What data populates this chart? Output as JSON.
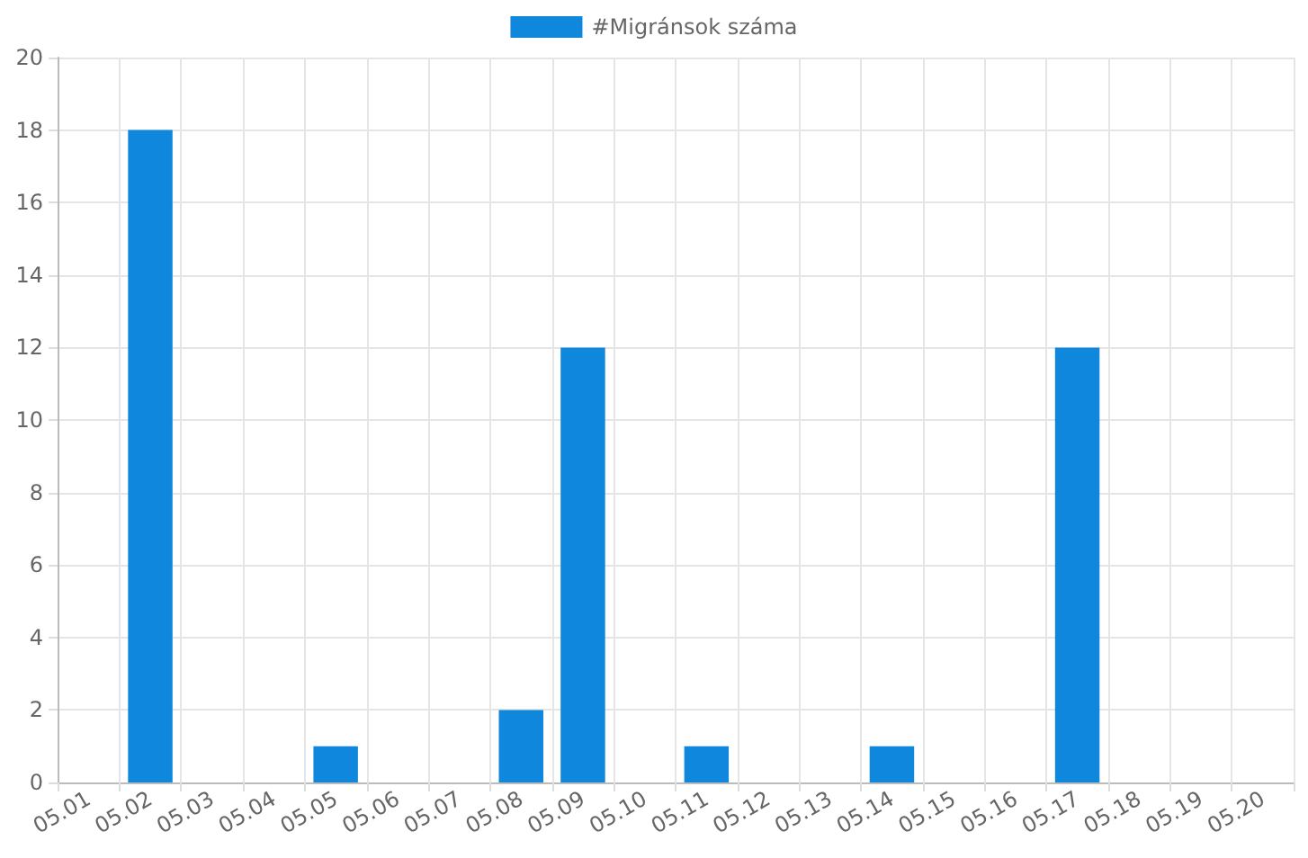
{
  "chart_data": {
    "type": "bar",
    "categories": [
      "05.01",
      "05.02",
      "05.03",
      "05.04",
      "05.05",
      "05.06",
      "05.07",
      "05.08",
      "05.09",
      "05.10",
      "05.11",
      "05.12",
      "05.13",
      "05.14",
      "05.15",
      "05.16",
      "05.17",
      "05.18",
      "05.19",
      "05.20"
    ],
    "series": [
      {
        "name": "#Migránsok száma",
        "color": "#0e87dd",
        "values": [
          0,
          18,
          0,
          0,
          1,
          0,
          0,
          2,
          12,
          0,
          1,
          0,
          0,
          1,
          0,
          0,
          12,
          0,
          0,
          0
        ]
      }
    ],
    "ylim": [
      0,
      20
    ],
    "yticks": [
      0,
      2,
      4,
      6,
      8,
      10,
      12,
      14,
      16,
      18,
      20
    ],
    "grid": true,
    "legend": "top"
  }
}
